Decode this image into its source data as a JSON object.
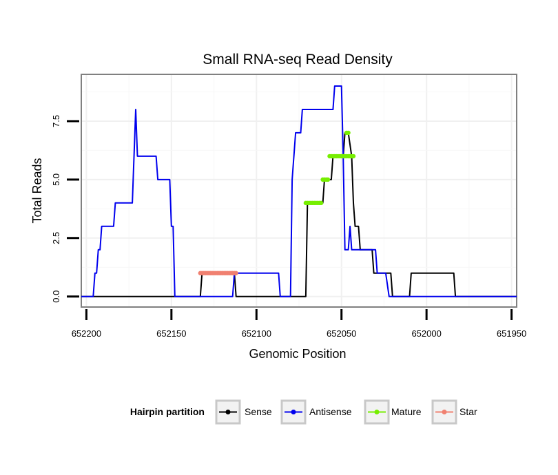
{
  "chart_data": {
    "type": "line",
    "title": "Small RNA-seq Read Density",
    "xlabel": "Genomic Position",
    "ylabel": "Total Reads",
    "x_reversed": true,
    "xlim": [
      652203,
      651947
    ],
    "ylim": [
      -0.45,
      9.5
    ],
    "x_ticks": [
      652200,
      652150,
      652100,
      652050,
      652000,
      651950
    ],
    "x_tick_labels": [
      "652200",
      "652150",
      "652100",
      "652050",
      "652000",
      "651950"
    ],
    "y_ticks": [
      0.0,
      2.5,
      5.0,
      7.5
    ],
    "y_tick_labels": [
      "0.0",
      "2.5",
      "5.0",
      "7.5"
    ],
    "grid": true,
    "legend": {
      "title": "Hairpin partition",
      "position": "bottom",
      "entries": [
        "Sense",
        "Antisense",
        "Mature",
        "Star"
      ]
    },
    "series": [
      {
        "name": "Sense",
        "color": "#000000",
        "style": "line",
        "points": [
          [
            652203,
            0
          ],
          [
            652133,
            0
          ],
          [
            652132,
            1
          ],
          [
            652113,
            1
          ],
          [
            652112,
            0
          ],
          [
            652071,
            0
          ],
          [
            652070,
            4
          ],
          [
            652061,
            4
          ],
          [
            652060,
            5
          ],
          [
            652056,
            5
          ],
          [
            652055,
            6
          ],
          [
            652049,
            6
          ],
          [
            652048,
            7
          ],
          [
            652046,
            7
          ],
          [
            652044,
            6
          ],
          [
            652043,
            4
          ],
          [
            652042,
            3
          ],
          [
            652040,
            3
          ],
          [
            652039,
            2
          ],
          [
            652032,
            2
          ],
          [
            652031,
            1
          ],
          [
            652021,
            1
          ],
          [
            652020,
            0
          ],
          [
            652010,
            0
          ],
          [
            652009,
            1
          ],
          [
            651984,
            1
          ],
          [
            651983,
            0
          ],
          [
            651947,
            0
          ]
        ]
      },
      {
        "name": "Antisense",
        "color": "#0000ee",
        "style": "line",
        "points": [
          [
            652203,
            0
          ],
          [
            652196,
            0
          ],
          [
            652195,
            1
          ],
          [
            652194,
            1
          ],
          [
            652193,
            2
          ],
          [
            652192,
            2
          ],
          [
            652191,
            3
          ],
          [
            652184,
            3
          ],
          [
            652183,
            4
          ],
          [
            652174,
            4
          ],
          [
            652173,
            4
          ],
          [
            652171,
            8
          ],
          [
            652170,
            6
          ],
          [
            652159,
            6
          ],
          [
            652158,
            5
          ],
          [
            652151,
            5
          ],
          [
            652150,
            3
          ],
          [
            652149,
            3
          ],
          [
            652148,
            0
          ],
          [
            652114,
            0
          ],
          [
            652113,
            1
          ],
          [
            652087,
            1
          ],
          [
            652086,
            0
          ],
          [
            652080,
            0
          ],
          [
            652079,
            5
          ],
          [
            652077,
            7
          ],
          [
            652074,
            7
          ],
          [
            652073,
            8
          ],
          [
            652055,
            8
          ],
          [
            652054,
            9
          ],
          [
            652050,
            9
          ],
          [
            652049,
            6
          ],
          [
            652048,
            2
          ],
          [
            652046,
            2
          ],
          [
            652045,
            3
          ],
          [
            652044,
            2
          ],
          [
            652030,
            2
          ],
          [
            652029,
            1
          ],
          [
            652024,
            1
          ],
          [
            652022,
            0
          ],
          [
            651947,
            0
          ]
        ]
      },
      {
        "name": "Mature",
        "color": "#76ee00",
        "style": "markers",
        "points": [
          [
            652071,
            4
          ],
          [
            652070,
            4
          ],
          [
            652069,
            4
          ],
          [
            652068,
            4
          ],
          [
            652067,
            4
          ],
          [
            652066,
            4
          ],
          [
            652065,
            4
          ],
          [
            652064,
            4
          ],
          [
            652063,
            4
          ],
          [
            652062,
            4
          ],
          [
            652061,
            5
          ],
          [
            652060,
            5
          ],
          [
            652059,
            5
          ],
          [
            652058,
            5
          ],
          [
            652057,
            6
          ],
          [
            652056,
            6
          ],
          [
            652055,
            6
          ],
          [
            652054,
            6
          ],
          [
            652053,
            6
          ],
          [
            652052,
            6
          ],
          [
            652051,
            6
          ],
          [
            652050,
            6
          ],
          [
            652049,
            6
          ],
          [
            652048,
            6
          ],
          [
            652047,
            6
          ],
          [
            652046,
            6
          ],
          [
            652045,
            6
          ],
          [
            652044,
            6
          ],
          [
            652043,
            6
          ],
          [
            652047,
            7
          ],
          [
            652046,
            7
          ]
        ]
      },
      {
        "name": "Star",
        "color": "#f08070",
        "style": "markers",
        "points": [
          [
            652133,
            1
          ],
          [
            652132,
            1
          ],
          [
            652131,
            1
          ],
          [
            652130,
            1
          ],
          [
            652129,
            1
          ],
          [
            652128,
            1
          ],
          [
            652127,
            1
          ],
          [
            652126,
            1
          ],
          [
            652125,
            1
          ],
          [
            652124,
            1
          ],
          [
            652123,
            1
          ],
          [
            652122,
            1
          ],
          [
            652121,
            1
          ],
          [
            652120,
            1
          ],
          [
            652119,
            1
          ],
          [
            652118,
            1
          ],
          [
            652117,
            1
          ],
          [
            652116,
            1
          ],
          [
            652115,
            1
          ],
          [
            652114,
            1
          ],
          [
            652113,
            1
          ],
          [
            652112,
            1
          ]
        ]
      }
    ]
  }
}
